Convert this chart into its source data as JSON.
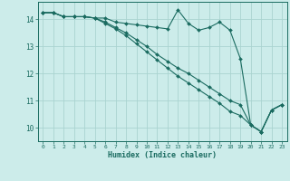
{
  "xlabel": "Humidex (Indice chaleur)",
  "bg_color": "#ccecea",
  "grid_color": "#aad4d0",
  "line_color": "#1a6b60",
  "xlim": [
    -0.5,
    23.5
  ],
  "ylim": [
    9.5,
    14.65
  ],
  "yticks": [
    10,
    11,
    12,
    13,
    14
  ],
  "xticks": [
    0,
    1,
    2,
    3,
    4,
    5,
    6,
    7,
    8,
    9,
    10,
    11,
    12,
    13,
    14,
    15,
    16,
    17,
    18,
    19,
    20,
    21,
    22,
    23
  ],
  "line1_x": [
    0,
    1,
    2,
    3,
    4,
    5,
    6,
    7,
    8,
    9,
    10,
    11,
    12,
    13,
    14,
    15,
    16,
    17,
    18,
    19,
    20,
    21,
    22,
    23
  ],
  "line1_y": [
    14.25,
    14.25,
    14.1,
    14.1,
    14.1,
    14.05,
    14.05,
    13.9,
    13.85,
    13.8,
    13.75,
    13.7,
    13.65,
    14.35,
    13.85,
    13.6,
    13.7,
    13.9,
    13.6,
    12.55,
    10.1,
    9.85,
    10.65,
    10.85
  ],
  "line2_x": [
    0,
    1,
    2,
    3,
    4,
    5,
    6,
    7,
    8,
    9,
    10,
    11,
    12,
    13,
    14,
    15,
    16,
    17,
    18,
    19,
    20,
    21,
    22,
    23
  ],
  "line2_y": [
    14.25,
    14.25,
    14.1,
    14.1,
    14.1,
    14.05,
    13.9,
    13.7,
    13.5,
    13.25,
    13.0,
    12.7,
    12.45,
    12.2,
    12.0,
    11.75,
    11.5,
    11.25,
    11.0,
    10.85,
    10.1,
    9.85,
    10.65,
    10.85
  ],
  "line3_x": [
    0,
    1,
    2,
    3,
    4,
    5,
    6,
    7,
    8,
    9,
    10,
    11,
    12,
    13,
    14,
    15,
    16,
    17,
    18,
    19,
    20,
    21,
    22,
    23
  ],
  "line3_y": [
    14.25,
    14.25,
    14.1,
    14.1,
    14.1,
    14.05,
    13.85,
    13.65,
    13.4,
    13.1,
    12.8,
    12.5,
    12.2,
    11.9,
    11.65,
    11.4,
    11.15,
    10.9,
    10.6,
    10.45,
    10.1,
    9.85,
    10.65,
    10.85
  ]
}
